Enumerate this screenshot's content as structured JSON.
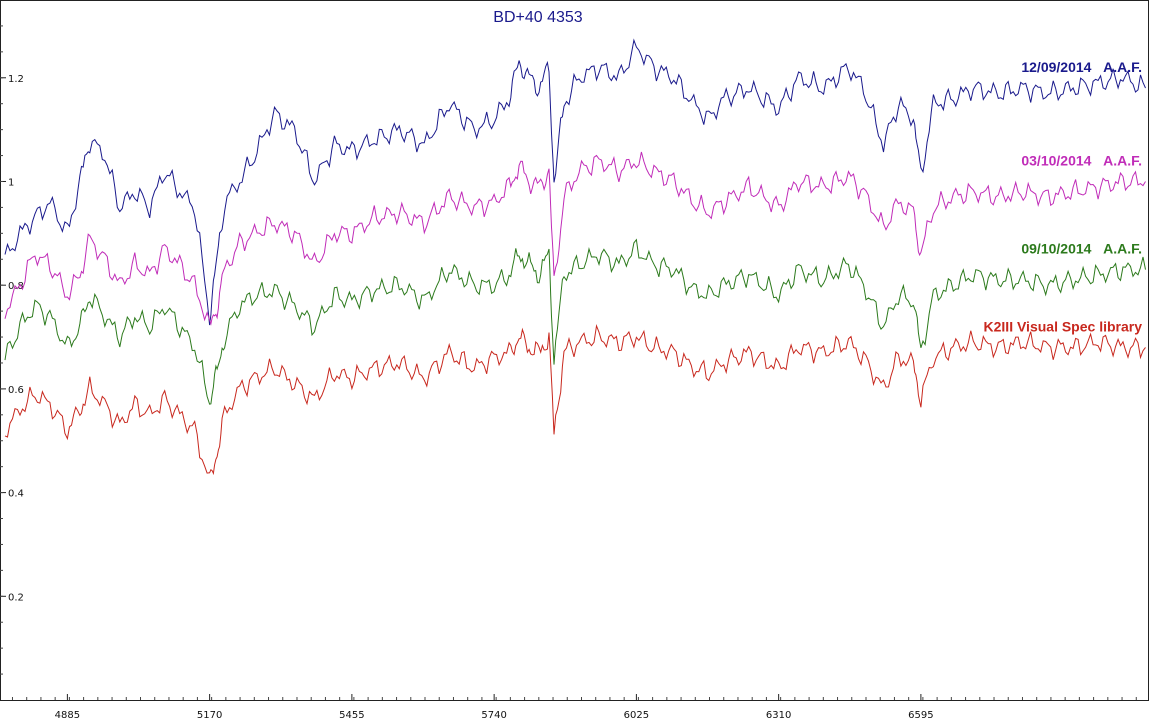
{
  "chart_data": {
    "type": "line",
    "title": "BD+40 4353",
    "title_color": "#1a1a8c",
    "xlabel": "",
    "ylabel": "",
    "xlim": [
      4750,
      7050
    ],
    "ylim": [
      0,
      1.35
    ],
    "x_ticks": [
      4885,
      5170,
      5455,
      5740,
      6025,
      6310,
      6595
    ],
    "y_ticks": [
      0.2,
      0.4,
      0.6,
      0.8,
      1,
      1.2
    ],
    "y_tick_labels": [
      "0.2",
      "0.4",
      "0.6",
      "0.8",
      "1",
      "1.2"
    ],
    "grid": false,
    "legend_placement": "right, beside each curve",
    "series": [
      {
        "name": "12/09/2014",
        "observer": "A.A.F.",
        "color": "#1a1a8c",
        "x": [
          4760,
          4790,
          4820,
          4850,
          4885,
          4910,
          4930,
          4960,
          4990,
          5020,
          5050,
          5080,
          5110,
          5140,
          5170,
          5185,
          5200,
          5230,
          5260,
          5300,
          5340,
          5380,
          5420,
          5455,
          5500,
          5550,
          5600,
          5650,
          5700,
          5740,
          5770,
          5790,
          5810,
          5830,
          5850,
          5860,
          5880,
          5910,
          5950,
          5990,
          6025,
          6060,
          6100,
          6140,
          6170,
          6200,
          6250,
          6310,
          6350,
          6400,
          6450,
          6480,
          6520,
          6550,
          6580,
          6595,
          6620,
          6660,
          6700,
          6750,
          6800,
          6850,
          6900,
          6950,
          7000,
          7045
        ],
        "values": [
          0.85,
          0.9,
          0.93,
          0.96,
          0.9,
          1.0,
          1.08,
          1.05,
          0.95,
          0.98,
          0.95,
          1.02,
          0.98,
          0.95,
          0.74,
          0.85,
          0.96,
          1.0,
          1.05,
          1.13,
          1.1,
          1.0,
          1.07,
          1.06,
          1.08,
          1.1,
          1.07,
          1.15,
          1.1,
          1.12,
          1.16,
          1.23,
          1.2,
          1.18,
          1.22,
          1.0,
          1.15,
          1.2,
          1.22,
          1.2,
          1.26,
          1.22,
          1.2,
          1.15,
          1.12,
          1.16,
          1.18,
          1.14,
          1.2,
          1.18,
          1.22,
          1.18,
          1.07,
          1.15,
          1.12,
          1.01,
          1.15,
          1.16,
          1.18,
          1.17,
          1.18,
          1.17,
          1.18,
          1.19,
          1.2,
          1.18
        ]
      },
      {
        "name": "03/10/2014",
        "observer": "A.A.F.",
        "color": "#c02cb8",
        "x": [
          4760,
          4790,
          4820,
          4850,
          4885,
          4910,
          4930,
          4960,
          4990,
          5020,
          5050,
          5080,
          5110,
          5140,
          5170,
          5185,
          5200,
          5230,
          5260,
          5300,
          5340,
          5380,
          5420,
          5455,
          5500,
          5550,
          5600,
          5650,
          5700,
          5740,
          5770,
          5790,
          5810,
          5830,
          5850,
          5860,
          5880,
          5910,
          5950,
          5990,
          6025,
          6060,
          6100,
          6140,
          6170,
          6200,
          6250,
          6310,
          6350,
          6400,
          6450,
          6480,
          6520,
          6550,
          6580,
          6595,
          6620,
          6660,
          6700,
          6750,
          6800,
          6850,
          6900,
          6950,
          7000,
          7045
        ],
        "values": [
          0.75,
          0.8,
          0.86,
          0.84,
          0.78,
          0.82,
          0.89,
          0.85,
          0.8,
          0.84,
          0.82,
          0.87,
          0.84,
          0.8,
          0.72,
          0.76,
          0.83,
          0.88,
          0.9,
          0.92,
          0.9,
          0.84,
          0.9,
          0.9,
          0.93,
          0.94,
          0.92,
          0.97,
          0.95,
          0.96,
          0.99,
          1.03,
          1.0,
          0.99,
          1.02,
          0.8,
          0.97,
          1.02,
          1.04,
          1.02,
          1.04,
          1.02,
          1.0,
          0.96,
          0.94,
          0.96,
          0.99,
          0.95,
          1.0,
          0.99,
          1.01,
          0.98,
          0.91,
          0.96,
          0.94,
          0.86,
          0.95,
          0.97,
          0.98,
          0.97,
          0.98,
          0.97,
          0.98,
          0.99,
          1.0,
          1.0
        ]
      },
      {
        "name": "09/10/2014",
        "observer": "A.A.F.",
        "color": "#2c7a1c",
        "x": [
          4760,
          4790,
          4820,
          4850,
          4885,
          4910,
          4930,
          4960,
          4990,
          5020,
          5050,
          5080,
          5110,
          5140,
          5170,
          5185,
          5200,
          5230,
          5260,
          5300,
          5340,
          5380,
          5420,
          5455,
          5500,
          5550,
          5600,
          5650,
          5700,
          5740,
          5770,
          5790,
          5810,
          5830,
          5850,
          5860,
          5880,
          5910,
          5950,
          5990,
          6025,
          6060,
          6100,
          6140,
          6170,
          6200,
          6250,
          6310,
          6350,
          6400,
          6450,
          6480,
          6520,
          6550,
          6580,
          6595,
          6620,
          6660,
          6700,
          6750,
          6800,
          6850,
          6900,
          6950,
          7000,
          7045
        ],
        "values": [
          0.66,
          0.72,
          0.76,
          0.74,
          0.68,
          0.72,
          0.78,
          0.74,
          0.7,
          0.74,
          0.72,
          0.76,
          0.72,
          0.68,
          0.58,
          0.63,
          0.7,
          0.76,
          0.78,
          0.79,
          0.76,
          0.72,
          0.78,
          0.77,
          0.79,
          0.8,
          0.77,
          0.83,
          0.8,
          0.8,
          0.82,
          0.86,
          0.84,
          0.82,
          0.86,
          0.66,
          0.82,
          0.84,
          0.86,
          0.84,
          0.87,
          0.84,
          0.83,
          0.79,
          0.78,
          0.8,
          0.82,
          0.78,
          0.83,
          0.81,
          0.84,
          0.8,
          0.72,
          0.78,
          0.77,
          0.67,
          0.78,
          0.8,
          0.82,
          0.81,
          0.81,
          0.8,
          0.81,
          0.82,
          0.83,
          0.83
        ]
      },
      {
        "name": "K2III Visual Spec library",
        "color": "#c8281e",
        "x": [
          4760,
          4790,
          4820,
          4850,
          4885,
          4910,
          4930,
          4960,
          4990,
          5020,
          5050,
          5080,
          5110,
          5140,
          5170,
          5185,
          5200,
          5230,
          5260,
          5300,
          5340,
          5380,
          5420,
          5455,
          5500,
          5550,
          5600,
          5650,
          5700,
          5740,
          5770,
          5790,
          5810,
          5830,
          5850,
          5860,
          5880,
          5910,
          5950,
          5990,
          6025,
          6060,
          6100,
          6140,
          6170,
          6200,
          6250,
          6310,
          6350,
          6400,
          6450,
          6480,
          6520,
          6550,
          6580,
          6595,
          6620,
          6660,
          6700,
          6750,
          6800,
          6850,
          6900,
          6950,
          7000,
          7045
        ],
        "values": [
          0.52,
          0.56,
          0.59,
          0.57,
          0.52,
          0.56,
          0.6,
          0.57,
          0.53,
          0.57,
          0.55,
          0.58,
          0.55,
          0.52,
          0.42,
          0.48,
          0.55,
          0.6,
          0.62,
          0.64,
          0.61,
          0.58,
          0.63,
          0.62,
          0.64,
          0.65,
          0.62,
          0.67,
          0.64,
          0.66,
          0.67,
          0.7,
          0.68,
          0.67,
          0.7,
          0.51,
          0.67,
          0.69,
          0.7,
          0.69,
          0.7,
          0.68,
          0.67,
          0.64,
          0.63,
          0.65,
          0.67,
          0.64,
          0.68,
          0.67,
          0.69,
          0.66,
          0.6,
          0.66,
          0.65,
          0.58,
          0.66,
          0.68,
          0.69,
          0.68,
          0.69,
          0.68,
          0.68,
          0.69,
          0.68,
          0.68
        ]
      }
    ]
  }
}
